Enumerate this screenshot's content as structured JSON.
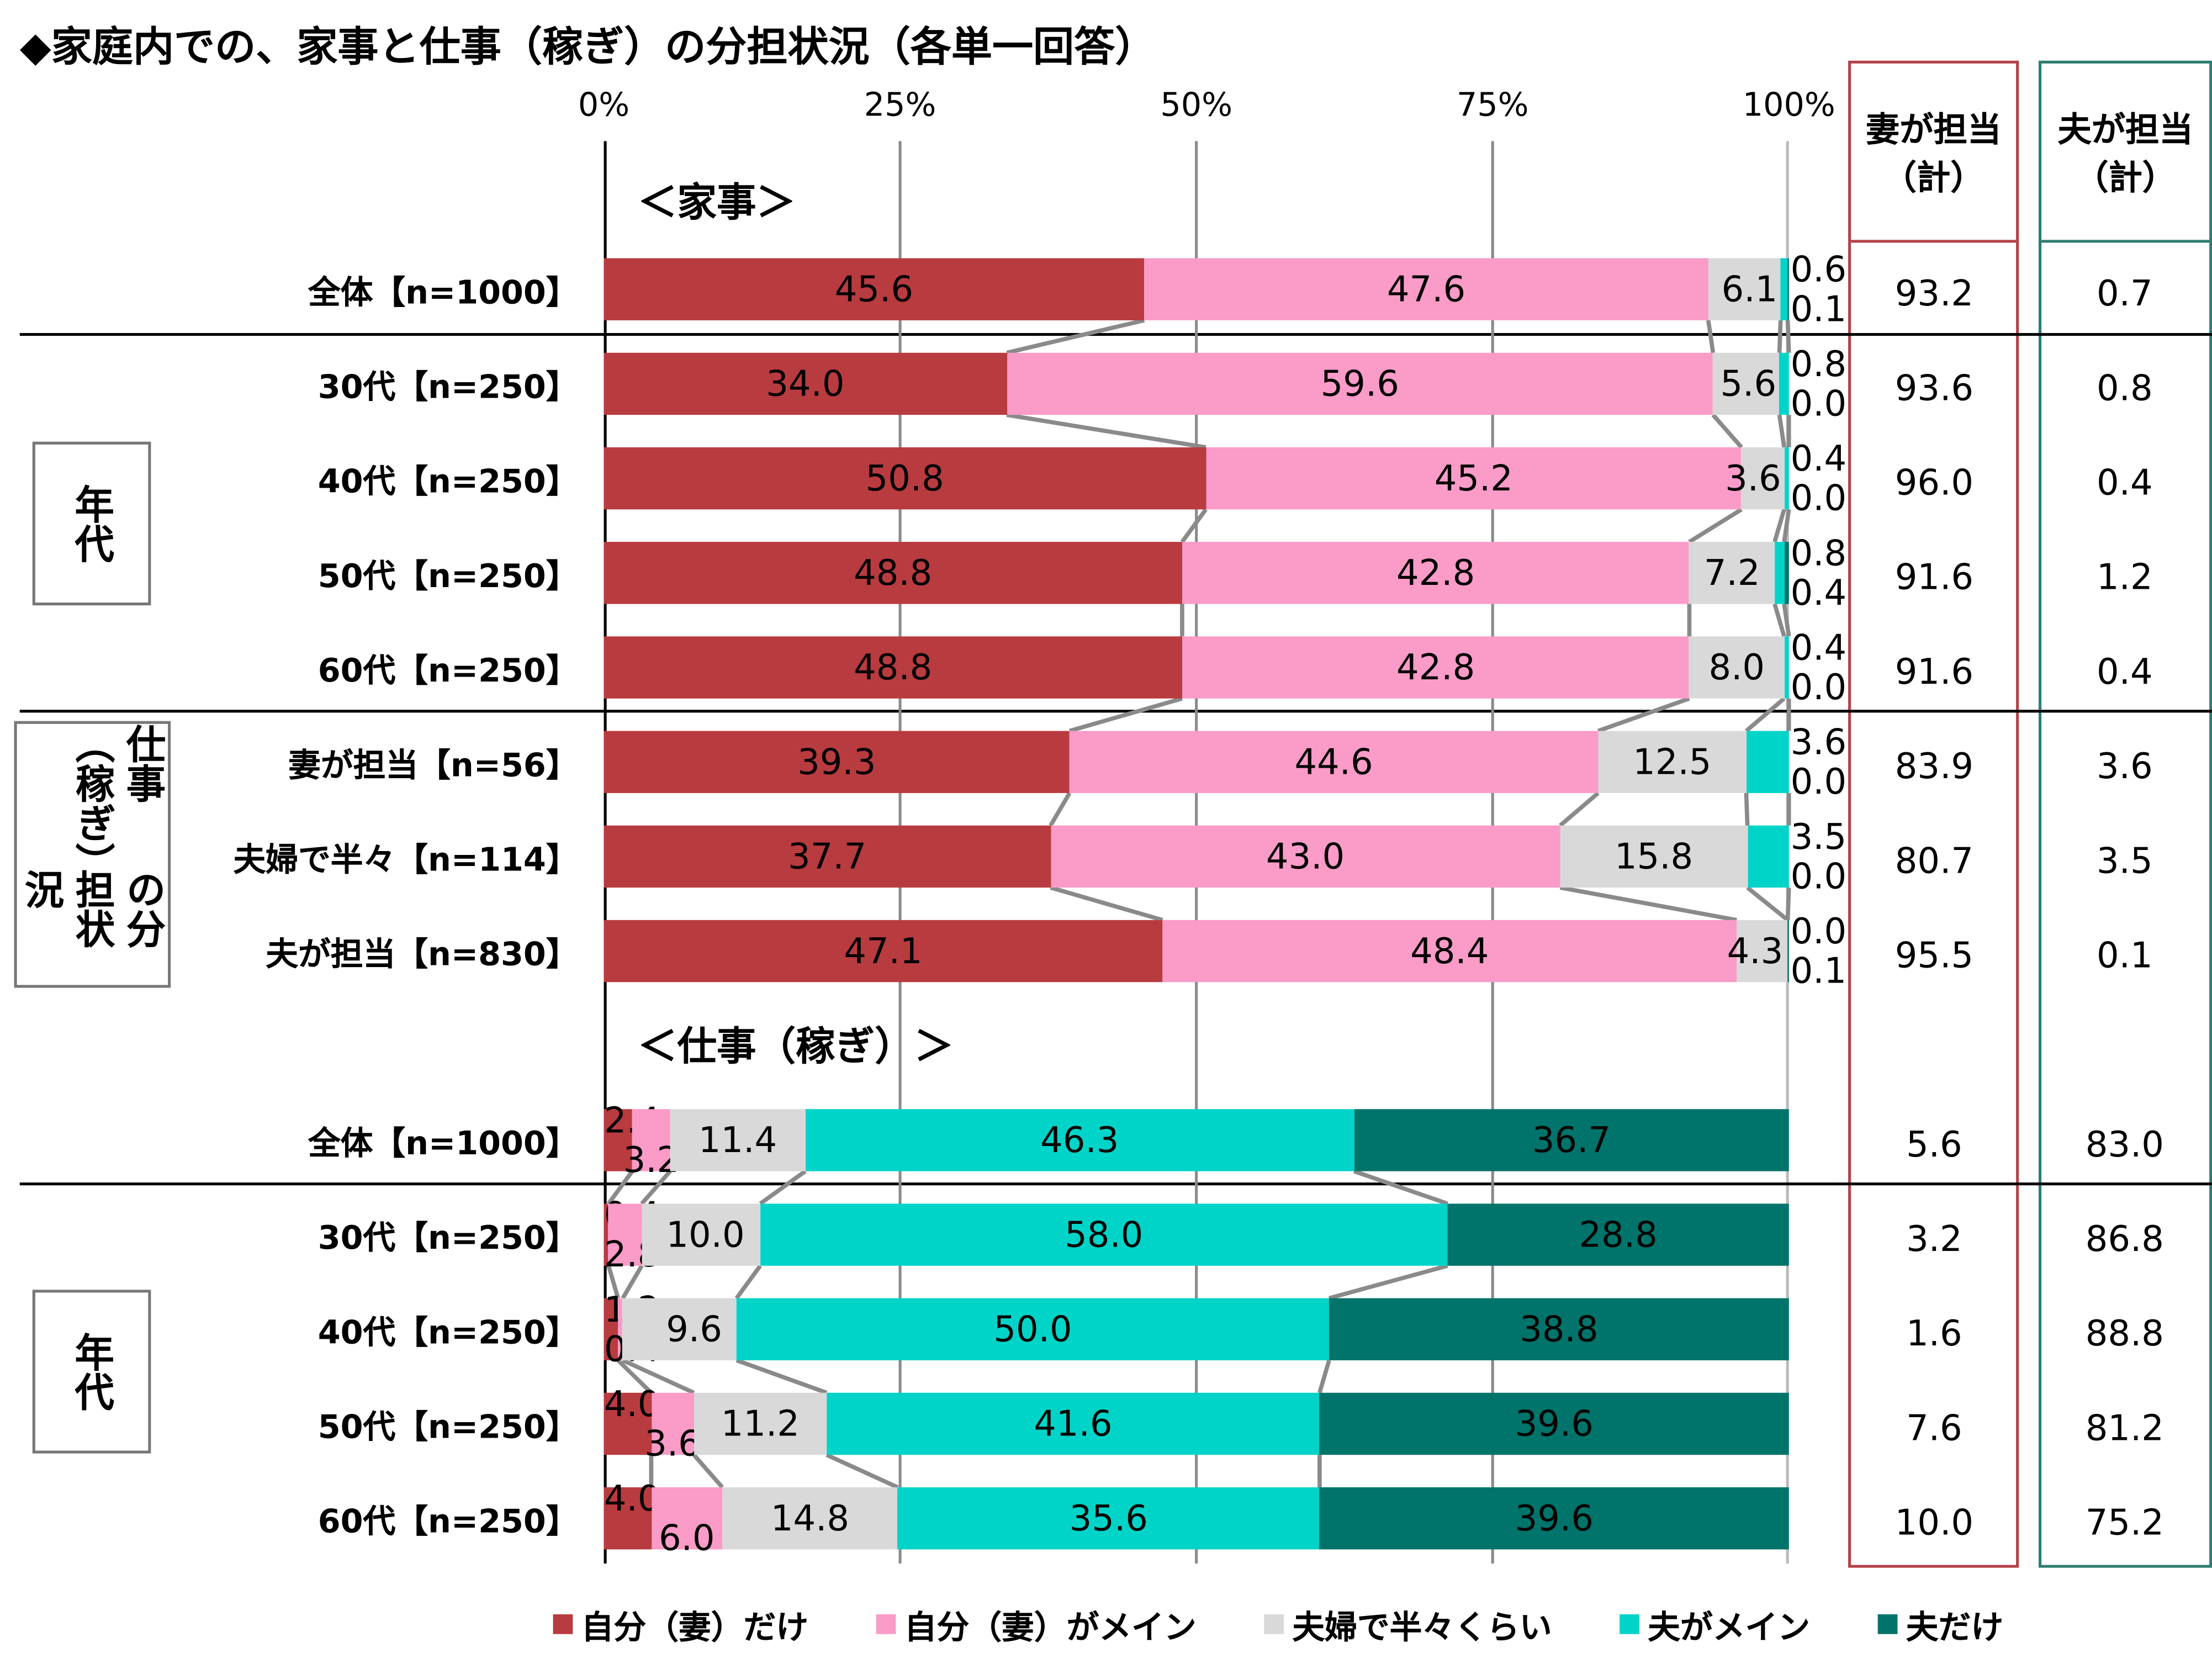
{
  "title": "◆家庭内での、家事と仕事（稼ぎ）の分担状況（各単一回答）",
  "axis_ticks": [
    "0%",
    "25%",
    "50%",
    "75%",
    "100%"
  ],
  "columns": {
    "wife": {
      "title": "妻が担当",
      "sub": "（計）",
      "color": "#b5424a"
    },
    "husband": {
      "title": "夫が担当",
      "sub": "（計）",
      "color": "#2e7d72"
    }
  },
  "groups": [
    {
      "label": "年代"
    },
    {
      "label_col1": "仕事（稼ぎ）",
      "label_col2": "の分担状況"
    },
    {
      "label": "年代"
    }
  ],
  "legend": [
    {
      "label": "自分（妻）だけ",
      "color": "#b83b3f"
    },
    {
      "label": "自分（妻）がメイン",
      "color": "#fa9bc8"
    },
    {
      "label": "夫婦で半々くらい",
      "color": "#d9d9d9"
    },
    {
      "label": "夫がメイン",
      "color": "#00d4c8"
    },
    {
      "label": "夫だけ",
      "color": "#00736a"
    }
  ],
  "chart_data": {
    "type": "bar",
    "orientation": "horizontal",
    "stacked": true,
    "xlim": [
      0,
      100
    ],
    "unit": "%",
    "series_names": [
      "自分（妻）だけ",
      "自分（妻）がメイン",
      "夫婦で半々くらい",
      "夫がメイン",
      "夫だけ"
    ],
    "sections": [
      {
        "title": "＜家事＞",
        "rows": [
          {
            "label": "全体【n=1000】",
            "values": [
              45.6,
              47.6,
              6.1,
              0.6,
              0.1
            ],
            "wife_total": "93.2",
            "husband_total": "0.7"
          },
          {
            "label": "30代【n=250】",
            "values": [
              34.0,
              59.6,
              5.6,
              0.8,
              0.0
            ],
            "wife_total": "93.6",
            "husband_total": "0.8"
          },
          {
            "label": "40代【n=250】",
            "values": [
              50.8,
              45.2,
              3.6,
              0.4,
              0.0
            ],
            "wife_total": "96.0",
            "husband_total": "0.4"
          },
          {
            "label": "50代【n=250】",
            "values": [
              48.8,
              42.8,
              7.2,
              0.8,
              0.4
            ],
            "wife_total": "91.6",
            "husband_total": "1.2"
          },
          {
            "label": "60代【n=250】",
            "values": [
              48.8,
              42.8,
              8.0,
              0.4,
              0.0
            ],
            "wife_total": "91.6",
            "husband_total": "0.4"
          },
          {
            "label": "妻が担当【n=56】",
            "values": [
              39.3,
              44.6,
              12.5,
              3.6,
              0.0
            ],
            "wife_total": "83.9",
            "husband_total": "3.6"
          },
          {
            "label": "夫婦で半々【n=114】",
            "values": [
              37.7,
              43.0,
              15.8,
              3.5,
              0.0
            ],
            "wife_total": "80.7",
            "husband_total": "3.5"
          },
          {
            "label": "夫が担当【n=830】",
            "values": [
              47.1,
              48.4,
              4.3,
              0.0,
              0.1
            ],
            "wife_total": "95.5",
            "husband_total": "0.1"
          }
        ]
      },
      {
        "title": "＜仕事（稼ぎ）＞",
        "rows": [
          {
            "label": "全体【n=1000】",
            "values": [
              2.4,
              3.2,
              11.4,
              46.3,
              36.7
            ],
            "wife_total": "5.6",
            "husband_total": "83.0"
          },
          {
            "label": "30代【n=250】",
            "values": [
              0.4,
              2.8,
              10.0,
              58.0,
              28.8
            ],
            "wife_total": "3.2",
            "husband_total": "86.8"
          },
          {
            "label": "40代【n=250】",
            "values": [
              1.2,
              0.4,
              9.6,
              50.0,
              38.8
            ],
            "wife_total": "1.6",
            "husband_total": "88.8"
          },
          {
            "label": "50代【n=250】",
            "values": [
              4.0,
              3.6,
              11.2,
              41.6,
              39.6
            ],
            "wife_total": "7.6",
            "husband_total": "81.2"
          },
          {
            "label": "60代【n=250】",
            "values": [
              4.0,
              6.0,
              14.8,
              35.6,
              39.6
            ],
            "wife_total": "10.0",
            "husband_total": "75.2"
          }
        ]
      }
    ]
  }
}
